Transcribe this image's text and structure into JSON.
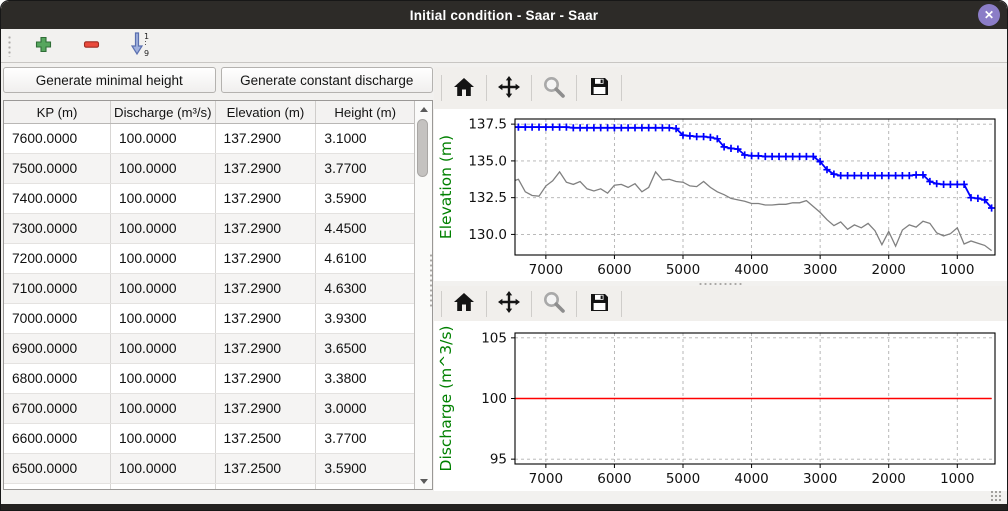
{
  "window": {
    "title": "Initial condition - Saar - Saar"
  },
  "titlebar": {
    "close_icon": "✕"
  },
  "main_toolbar": {
    "icons": [
      "add-row",
      "remove-row",
      "sort-rows-1-9"
    ]
  },
  "left_pane": {
    "buttons": [
      {
        "label": "Generate minimal height"
      },
      {
        "label": "Generate constant discharge"
      }
    ],
    "table": {
      "columns": [
        "KP (m)",
        "Discharge (m³/s)",
        "Elevation (m)",
        "Height (m)"
      ],
      "rows": [
        [
          "7600.0000",
          "100.0000",
          "137.2900",
          "3.1000"
        ],
        [
          "7500.0000",
          "100.0000",
          "137.2900",
          "3.7700"
        ],
        [
          "7400.0000",
          "100.0000",
          "137.2900",
          "3.5900"
        ],
        [
          "7300.0000",
          "100.0000",
          "137.2900",
          "4.4500"
        ],
        [
          "7200.0000",
          "100.0000",
          "137.2900",
          "4.6100"
        ],
        [
          "7100.0000",
          "100.0000",
          "137.2900",
          "4.6300"
        ],
        [
          "7000.0000",
          "100.0000",
          "137.2900",
          "3.9300"
        ],
        [
          "6900.0000",
          "100.0000",
          "137.2900",
          "3.6500"
        ],
        [
          "6800.0000",
          "100.0000",
          "137.2900",
          "3.3800"
        ],
        [
          "6700.0000",
          "100.0000",
          "137.2900",
          "3.0000"
        ],
        [
          "6600.0000",
          "100.0000",
          "137.2500",
          "3.7700"
        ],
        [
          "6500.0000",
          "100.0000",
          "137.2500",
          "3.5900"
        ]
      ]
    }
  },
  "chart_toolbar": {
    "icons": [
      "home",
      "pan",
      "zoom",
      "save"
    ]
  },
  "colors": {
    "water_line": "#0000ff",
    "bed_line": "#808080",
    "discharge_line": "#ff0000",
    "axis_label": "#008000",
    "close_button": "#8b7dc7"
  },
  "chart_data": [
    {
      "type": "line",
      "ylabel": "Elevation (m)",
      "xlim": [
        7450,
        450
      ],
      "ylim": [
        128.6,
        137.85
      ],
      "x_inverted": true,
      "grid": true,
      "xticks": [
        7000,
        6000,
        5000,
        4000,
        3000,
        2000,
        1000
      ],
      "xtick_labels": [
        "7000",
        "6000",
        "5000",
        "4000",
        "3000",
        "2000",
        "1000"
      ],
      "yticks": [
        130.0,
        132.5,
        135.0,
        137.5
      ],
      "ytick_labels": [
        "130.0",
        "132.5",
        "135.0",
        "137.5"
      ],
      "x": [
        7600,
        7500,
        7400,
        7300,
        7200,
        7100,
        7000,
        6900,
        6800,
        6700,
        6600,
        6500,
        6400,
        6300,
        6200,
        6100,
        6000,
        5900,
        5800,
        5700,
        5600,
        5500,
        5400,
        5300,
        5200,
        5100,
        5000,
        4900,
        4800,
        4700,
        4600,
        4500,
        4400,
        4300,
        4200,
        4100,
        4000,
        3900,
        3800,
        3700,
        3600,
        3500,
        3400,
        3300,
        3200,
        3100,
        3000,
        2900,
        2800,
        2700,
        2600,
        2500,
        2400,
        2300,
        2200,
        2100,
        2000,
        1900,
        1800,
        1700,
        1600,
        1500,
        1400,
        1300,
        1200,
        1100,
        1000,
        900,
        800,
        700,
        600,
        500
      ],
      "series": [
        {
          "name": "water-surface-elevation",
          "color": "#0000ff",
          "marker": "plus",
          "linewidth": 1.8,
          "values": [
            137.3,
            137.3,
            137.3,
            137.3,
            137.3,
            137.3,
            137.3,
            137.3,
            137.3,
            137.3,
            137.25,
            137.25,
            137.25,
            137.25,
            137.25,
            137.25,
            137.25,
            137.25,
            137.25,
            137.25,
            137.25,
            137.25,
            137.25,
            137.25,
            137.25,
            137.2,
            136.75,
            136.7,
            136.65,
            136.65,
            136.6,
            136.5,
            135.95,
            135.85,
            135.8,
            135.4,
            135.35,
            135.35,
            135.3,
            135.3,
            135.3,
            135.3,
            135.3,
            135.3,
            135.3,
            135.3,
            134.95,
            134.4,
            134.1,
            134.0,
            134.0,
            134.0,
            134.0,
            134.0,
            134.0,
            134.0,
            134.0,
            134.0,
            134.0,
            134.0,
            134.05,
            134.05,
            133.6,
            133.45,
            133.4,
            133.4,
            133.4,
            133.4,
            132.5,
            132.45,
            132.35,
            131.8
          ]
        },
        {
          "name": "bed-elevation",
          "color": "#808080",
          "marker": "none",
          "linewidth": 1.3,
          "values": [
            134.1,
            133.6,
            133.75,
            132.9,
            132.65,
            132.6,
            133.3,
            133.65,
            134.25,
            133.55,
            133.4,
            133.6,
            133.1,
            132.95,
            133.1,
            132.8,
            133.35,
            133.4,
            133.2,
            133.45,
            132.9,
            133.2,
            134.25,
            133.7,
            133.75,
            133.6,
            133.55,
            133.3,
            133.25,
            133.6,
            133.2,
            132.9,
            132.7,
            132.45,
            132.35,
            132.25,
            132.1,
            132.1,
            132.0,
            132.0,
            132.05,
            132.05,
            132.15,
            132.15,
            132.3,
            131.9,
            131.5,
            131.0,
            130.6,
            130.85,
            130.35,
            130.65,
            130.45,
            130.75,
            130.25,
            129.3,
            130.2,
            129.2,
            130.3,
            130.65,
            130.5,
            130.9,
            130.75,
            130.1,
            129.9,
            130.05,
            130.45,
            129.35,
            129.55,
            129.4,
            129.25,
            128.9
          ]
        }
      ]
    },
    {
      "type": "line",
      "ylabel": "Discharge (m^3/s)",
      "xlim": [
        7450,
        450
      ],
      "ylim": [
        94.6,
        105.4
      ],
      "x_inverted": true,
      "grid": true,
      "xticks": [
        7000,
        6000,
        5000,
        4000,
        3000,
        2000,
        1000
      ],
      "xtick_labels": [
        "7000",
        "6000",
        "5000",
        "4000",
        "3000",
        "2000",
        "1000"
      ],
      "yticks": [
        95,
        100,
        105
      ],
      "ytick_labels": [
        "95",
        "100",
        "105"
      ],
      "x": [
        7600,
        500
      ],
      "series": [
        {
          "name": "constant-discharge",
          "color": "#ff0000",
          "marker": "none",
          "linewidth": 1.6,
          "values": [
            100,
            100
          ]
        }
      ]
    }
  ]
}
